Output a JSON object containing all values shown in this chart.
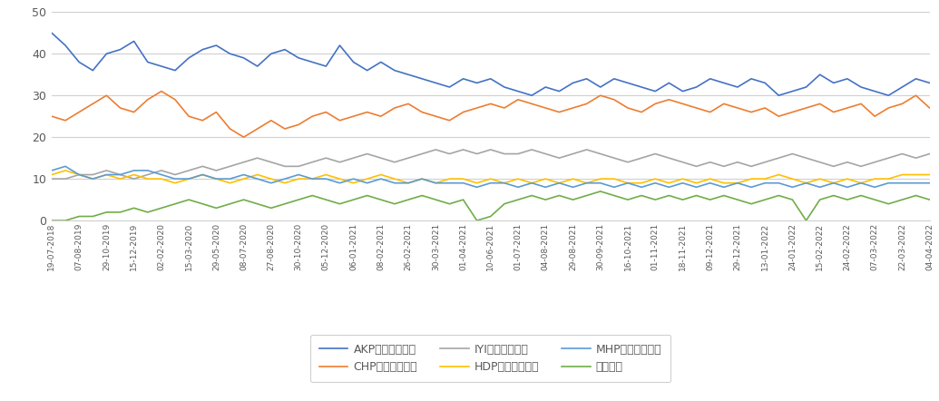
{
  "ylim": [
    0,
    50
  ],
  "yticks": [
    0,
    10,
    20,
    30,
    40,
    50
  ],
  "background_color": "#ffffff",
  "line_colors": {
    "AKP": "#4472C4",
    "CHP": "#ED7D31",
    "IYI": "#A5A5A5",
    "HDP": "#FFC000",
    "MHP": "#5B9BD5",
    "yato": "#70AD47"
  },
  "legend_labels": [
    "AKP（与党連合）",
    "CHP（野党連合）",
    "IYI（野党連合）",
    "HDP（クルド系）",
    "MHP（与党連合）",
    "野党協力"
  ],
  "x_labels": [
    "19-07-2018",
    "07-08-2019",
    "29-10-2019",
    "15-12-2019",
    "02-02-2020",
    "15-03-2020",
    "29-05-2020",
    "08-07-2020",
    "27-08-2020",
    "30-10-2020",
    "05-12-2020",
    "06-01-2021",
    "08-02-2021",
    "26-02-2021",
    "30-03-2021",
    "01-04-2021",
    "10-06-2021",
    "01-07-2021",
    "04-08-2021",
    "29-08-2021",
    "30-09-2021",
    "16-10-2021",
    "01-11-2021",
    "18-11-2021",
    "09-12-2021",
    "29-12-2021",
    "13-01-2022",
    "24-01-2022",
    "15-02-2022",
    "24-02-2022",
    "07-03-2022",
    "22-03-2022",
    "04-04-2022"
  ],
  "AKP": [
    45,
    42,
    38,
    36,
    40,
    41,
    43,
    38,
    37,
    36,
    39,
    41,
    42,
    40,
    39,
    37,
    40,
    41,
    39,
    38,
    37,
    42,
    38,
    36,
    38,
    36,
    35,
    34,
    33,
    32,
    34,
    33,
    34,
    32,
    31,
    30,
    32,
    31,
    33,
    34,
    32,
    34,
    33,
    32,
    31,
    33,
    31,
    32,
    34,
    33,
    32,
    34,
    33,
    30,
    31,
    32,
    35,
    33,
    34,
    32,
    31,
    30,
    32,
    34,
    33
  ],
  "CHP": [
    25,
    24,
    26,
    28,
    30,
    27,
    26,
    29,
    31,
    29,
    25,
    24,
    26,
    22,
    20,
    22,
    24,
    22,
    23,
    25,
    26,
    24,
    25,
    26,
    25,
    27,
    28,
    26,
    25,
    24,
    26,
    27,
    28,
    27,
    29,
    28,
    27,
    26,
    27,
    28,
    30,
    29,
    27,
    26,
    28,
    29,
    28,
    27,
    26,
    28,
    27,
    26,
    27,
    25,
    26,
    27,
    28,
    26,
    27,
    28,
    25,
    27,
    28,
    30,
    27
  ],
  "IYI": [
    10,
    10,
    11,
    11,
    12,
    11,
    10,
    11,
    12,
    11,
    12,
    13,
    12,
    13,
    14,
    15,
    14,
    13,
    13,
    14,
    15,
    14,
    15,
    16,
    15,
    14,
    15,
    16,
    17,
    16,
    17,
    16,
    17,
    16,
    16,
    17,
    16,
    15,
    16,
    17,
    16,
    15,
    14,
    15,
    16,
    15,
    14,
    13,
    14,
    13,
    14,
    13,
    14,
    15,
    16,
    15,
    14,
    13,
    14,
    13,
    14,
    15,
    16,
    15,
    16
  ],
  "HDP": [
    11,
    12,
    11,
    10,
    11,
    10,
    11,
    10,
    10,
    9,
    10,
    11,
    10,
    9,
    10,
    11,
    10,
    9,
    10,
    10,
    11,
    10,
    9,
    10,
    11,
    10,
    9,
    10,
    9,
    10,
    10,
    9,
    10,
    9,
    10,
    9,
    10,
    9,
    10,
    9,
    10,
    10,
    9,
    9,
    10,
    9,
    10,
    9,
    10,
    9,
    9,
    10,
    10,
    11,
    10,
    9,
    10,
    9,
    10,
    9,
    10,
    10,
    11,
    11,
    11
  ],
  "MHP": [
    12,
    13,
    11,
    10,
    11,
    11,
    12,
    12,
    11,
    10,
    10,
    11,
    10,
    10,
    11,
    10,
    9,
    10,
    11,
    10,
    10,
    9,
    10,
    9,
    10,
    9,
    9,
    10,
    9,
    9,
    9,
    8,
    9,
    9,
    8,
    9,
    8,
    9,
    8,
    9,
    9,
    8,
    9,
    8,
    9,
    8,
    9,
    8,
    9,
    8,
    9,
    8,
    9,
    9,
    8,
    9,
    8,
    9,
    8,
    9,
    8,
    9,
    9,
    9,
    9
  ],
  "yato": [
    0,
    0,
    1,
    1,
    2,
    2,
    3,
    2,
    3,
    4,
    5,
    4,
    3,
    4,
    5,
    4,
    3,
    4,
    5,
    6,
    5,
    4,
    5,
    6,
    5,
    4,
    5,
    6,
    5,
    4,
    5,
    0,
    1,
    4,
    5,
    6,
    5,
    6,
    5,
    6,
    7,
    6,
    5,
    6,
    5,
    6,
    5,
    6,
    5,
    6,
    5,
    4,
    5,
    6,
    5,
    0,
    5,
    6,
    5,
    6,
    5,
    4,
    5,
    6,
    5
  ],
  "noise_seed": 123
}
